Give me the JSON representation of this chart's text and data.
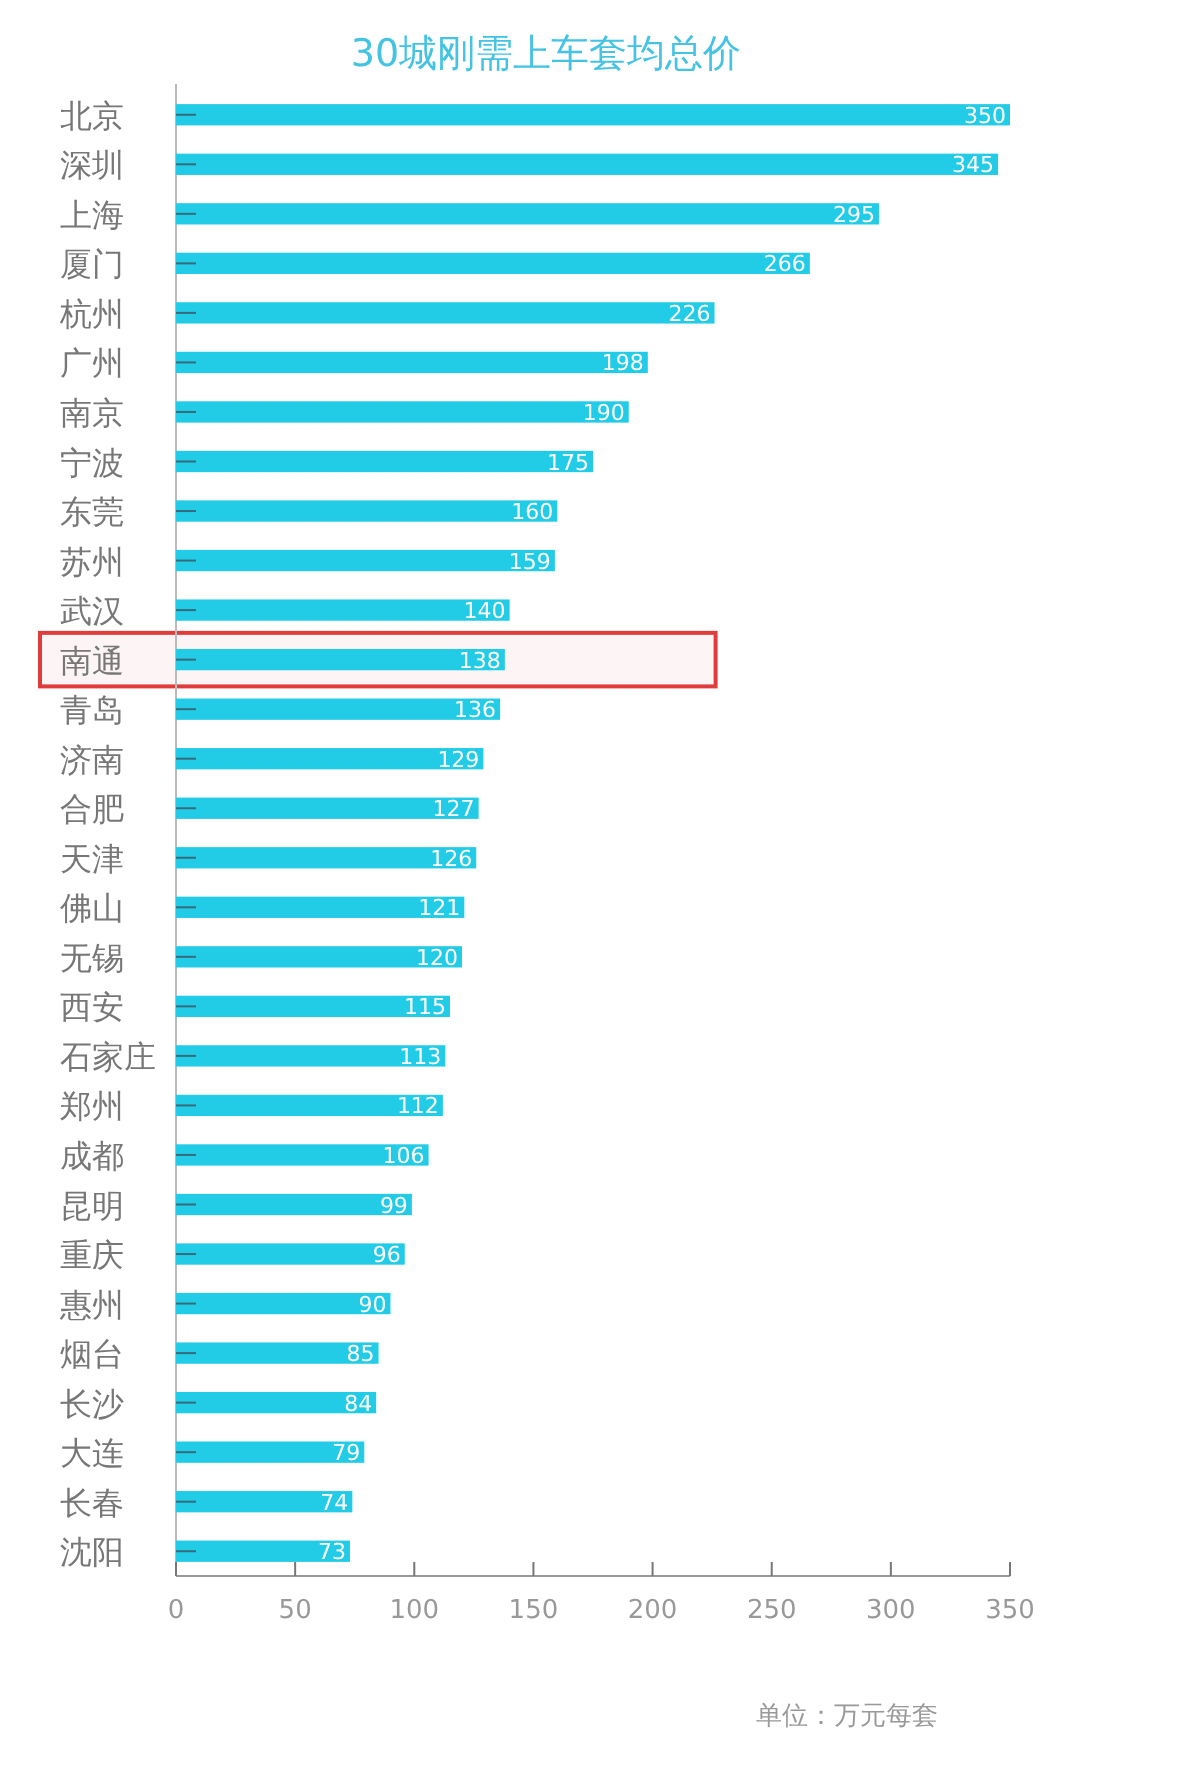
{
  "chart_data": {
    "type": "bar",
    "orientation": "horizontal",
    "title": "30城刚需上车套均总价",
    "categories": [
      "北京",
      "深圳",
      "上海",
      "厦门",
      "杭州",
      "广州",
      "南京",
      "宁波",
      "东莞",
      "苏州",
      "武汉",
      "南通",
      "青岛",
      "济南",
      "合肥",
      "天津",
      "佛山",
      "无锡",
      "西安",
      "石家庄",
      "郑州",
      "成都",
      "昆明",
      "重庆",
      "惠州",
      "烟台",
      "长沙",
      "大连",
      "长春",
      "沈阳"
    ],
    "values": [
      350,
      345,
      295,
      266,
      226,
      198,
      190,
      175,
      160,
      159,
      140,
      138,
      136,
      129,
      127,
      126,
      121,
      120,
      115,
      113,
      112,
      106,
      99,
      96,
      90,
      85,
      84,
      79,
      74,
      73
    ],
    "color": "#22cbe6",
    "xlim": [
      0,
      350
    ],
    "xticks": [
      0,
      50,
      100,
      150,
      200,
      250,
      300,
      350
    ],
    "data_labels": true,
    "bands": [
      {
        "axis": "y",
        "from": "南通",
        "to": "南通",
        "color": "#e03c3c"
      }
    ],
    "annotations": [
      "单位：万元每套"
    ]
  }
}
